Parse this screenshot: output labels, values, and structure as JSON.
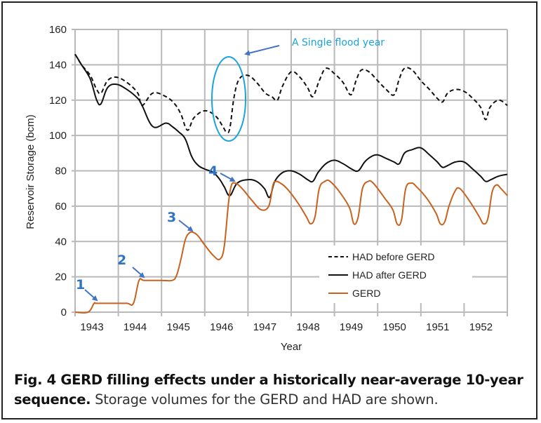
{
  "chart_data": {
    "type": "line",
    "title": "",
    "xlabel": "Year",
    "ylabel": "Reservoir Storage (bcm)",
    "xlim": [
      1943,
      1953
    ],
    "ylim": [
      0,
      160
    ],
    "x_ticks": [
      "1943",
      "1944",
      "1945",
      "1946",
      "1947",
      "1948",
      "1949",
      "1950",
      "1951",
      "1952"
    ],
    "y_ticks": [
      "0",
      "20",
      "40",
      "60",
      "80",
      "100",
      "120",
      "140",
      "160"
    ],
    "grid": true,
    "legend_position": "bottom-right",
    "series": [
      {
        "name": "HAD before GERD",
        "style": "dashed",
        "color": "#111111",
        "x": [
          1943.0,
          1943.15,
          1943.35,
          1943.5,
          1943.6,
          1943.75,
          1943.95,
          1944.2,
          1944.45,
          1944.55,
          1944.8,
          1945.1,
          1945.3,
          1945.45,
          1945.6,
          1945.75,
          1946.0,
          1946.25,
          1946.42,
          1946.5,
          1946.58,
          1946.68,
          1946.8,
          1947.0,
          1947.2,
          1947.4,
          1947.55,
          1947.68,
          1947.8,
          1948.0,
          1948.2,
          1948.38,
          1948.5,
          1948.65,
          1948.8,
          1949.0,
          1949.2,
          1949.38,
          1949.5,
          1949.62,
          1949.8,
          1950.0,
          1950.2,
          1950.38,
          1950.5,
          1950.62,
          1950.8,
          1951.0,
          1951.2,
          1951.38,
          1951.5,
          1951.62,
          1951.8,
          1952.0,
          1952.2,
          1952.38,
          1952.5,
          1952.6,
          1952.8,
          1953.0
        ],
        "y": [
          146,
          140,
          134,
          126,
          124,
          131,
          133,
          130,
          124,
          117,
          124,
          122,
          118,
          112,
          103,
          110,
          114,
          111,
          105,
          102,
          104,
          122,
          132,
          134,
          130,
          124,
          122,
          120,
          128,
          136,
          133,
          127,
          122,
          131,
          138,
          135,
          130,
          123,
          131,
          137,
          136,
          131,
          126,
          123,
          132,
          138,
          137,
          131,
          126,
          121,
          119,
          124,
          126,
          125,
          121,
          116,
          109,
          116,
          120,
          117
        ]
      },
      {
        "name": "HAD after GERD",
        "style": "solid",
        "color": "#111111",
        "x": [
          1943.0,
          1943.15,
          1943.35,
          1943.5,
          1943.6,
          1943.75,
          1943.95,
          1944.2,
          1944.45,
          1944.55,
          1944.8,
          1945.1,
          1945.25,
          1945.4,
          1945.55,
          1945.7,
          1945.85,
          1946.0,
          1946.2,
          1946.35,
          1946.45,
          1946.58,
          1946.75,
          1947.0,
          1947.2,
          1947.38,
          1947.5,
          1947.62,
          1947.8,
          1948.0,
          1948.2,
          1948.38,
          1948.5,
          1948.62,
          1948.8,
          1949.0,
          1949.2,
          1949.4,
          1949.55,
          1949.7,
          1949.85,
          1950.0,
          1950.2,
          1950.38,
          1950.5,
          1950.62,
          1950.8,
          1951.0,
          1951.2,
          1951.38,
          1951.5,
          1951.62,
          1951.8,
          1952.0,
          1952.2,
          1952.38,
          1952.5,
          1952.62,
          1952.8,
          1953.0
        ],
        "y": [
          146,
          140,
          132,
          120,
          118,
          127,
          129,
          126,
          121,
          117,
          105,
          107,
          105,
          102,
          98,
          88,
          83,
          81,
          79,
          75,
          71,
          66,
          73,
          75,
          74,
          70,
          65,
          74,
          79,
          80,
          78,
          75,
          74,
          79,
          84,
          86,
          84,
          81,
          80,
          85,
          88,
          89,
          87,
          85,
          84,
          90,
          92,
          93,
          89,
          85,
          82,
          83,
          85,
          85,
          81,
          77,
          74,
          75,
          77,
          78
        ]
      },
      {
        "name": "GERD",
        "style": "solid",
        "color": "#c8621e",
        "x": [
          1943.0,
          1943.3,
          1943.44,
          1943.5,
          1943.9,
          1944.2,
          1944.35,
          1944.48,
          1944.6,
          1945.0,
          1945.25,
          1945.35,
          1945.45,
          1945.55,
          1945.65,
          1945.75,
          1945.85,
          1946.0,
          1946.2,
          1946.35,
          1946.45,
          1946.55,
          1946.62,
          1946.7,
          1946.78,
          1946.9,
          1947.1,
          1947.3,
          1947.48,
          1947.58,
          1947.65,
          1947.75,
          1947.9,
          1948.15,
          1948.35,
          1948.45,
          1948.55,
          1948.65,
          1948.78,
          1948.9,
          1949.15,
          1949.35,
          1949.45,
          1949.55,
          1949.65,
          1949.78,
          1949.9,
          1950.15,
          1950.35,
          1950.45,
          1950.55,
          1950.65,
          1950.78,
          1950.9,
          1951.15,
          1951.35,
          1951.45,
          1951.55,
          1951.65,
          1951.78,
          1951.9,
          1952.15,
          1952.35,
          1952.45,
          1952.55,
          1952.65,
          1952.75,
          1952.85,
          1953.0
        ],
        "y": [
          0,
          0,
          5,
          5,
          5,
          5,
          5,
          18,
          18,
          18,
          18,
          21,
          30,
          41,
          45,
          45,
          43,
          38,
          32,
          30,
          37,
          62,
          72,
          73,
          72,
          69,
          63,
          58,
          60,
          72,
          74,
          73,
          70,
          62,
          54,
          50,
          54,
          70,
          74,
          74,
          67,
          59,
          50,
          54,
          70,
          74,
          73,
          65,
          58,
          50,
          52,
          70,
          73,
          71,
          64,
          56,
          50,
          51,
          60,
          68,
          70,
          62,
          54,
          50,
          53,
          68,
          72,
          70,
          66
        ]
      }
    ],
    "annotations": [
      {
        "label": "1",
        "target": [
          1943.3,
          5
        ]
      },
      {
        "label": "2",
        "target": [
          1944.5,
          18
        ]
      },
      {
        "label": "3",
        "target": [
          1945.65,
          45
        ]
      },
      {
        "label": "4",
        "target": [
          1946.65,
          73
        ]
      },
      {
        "label": "A Single flood year",
        "target": [
          1946.45,
          120
        ],
        "shape": "ellipse"
      }
    ]
  },
  "caption": {
    "bold": "Fig. 4 GERD filling effects under a historically near-average 10-year sequence.",
    "rest": " Storage volumes for the GERD and HAD are shown."
  },
  "colors": {
    "grid": "#b9b9b9",
    "annotation_arrow": "#4472c4",
    "annotation_number": "#2e74c0",
    "flood_ellipse": "#1aa4dc",
    "gerd": "#c8621e"
  }
}
